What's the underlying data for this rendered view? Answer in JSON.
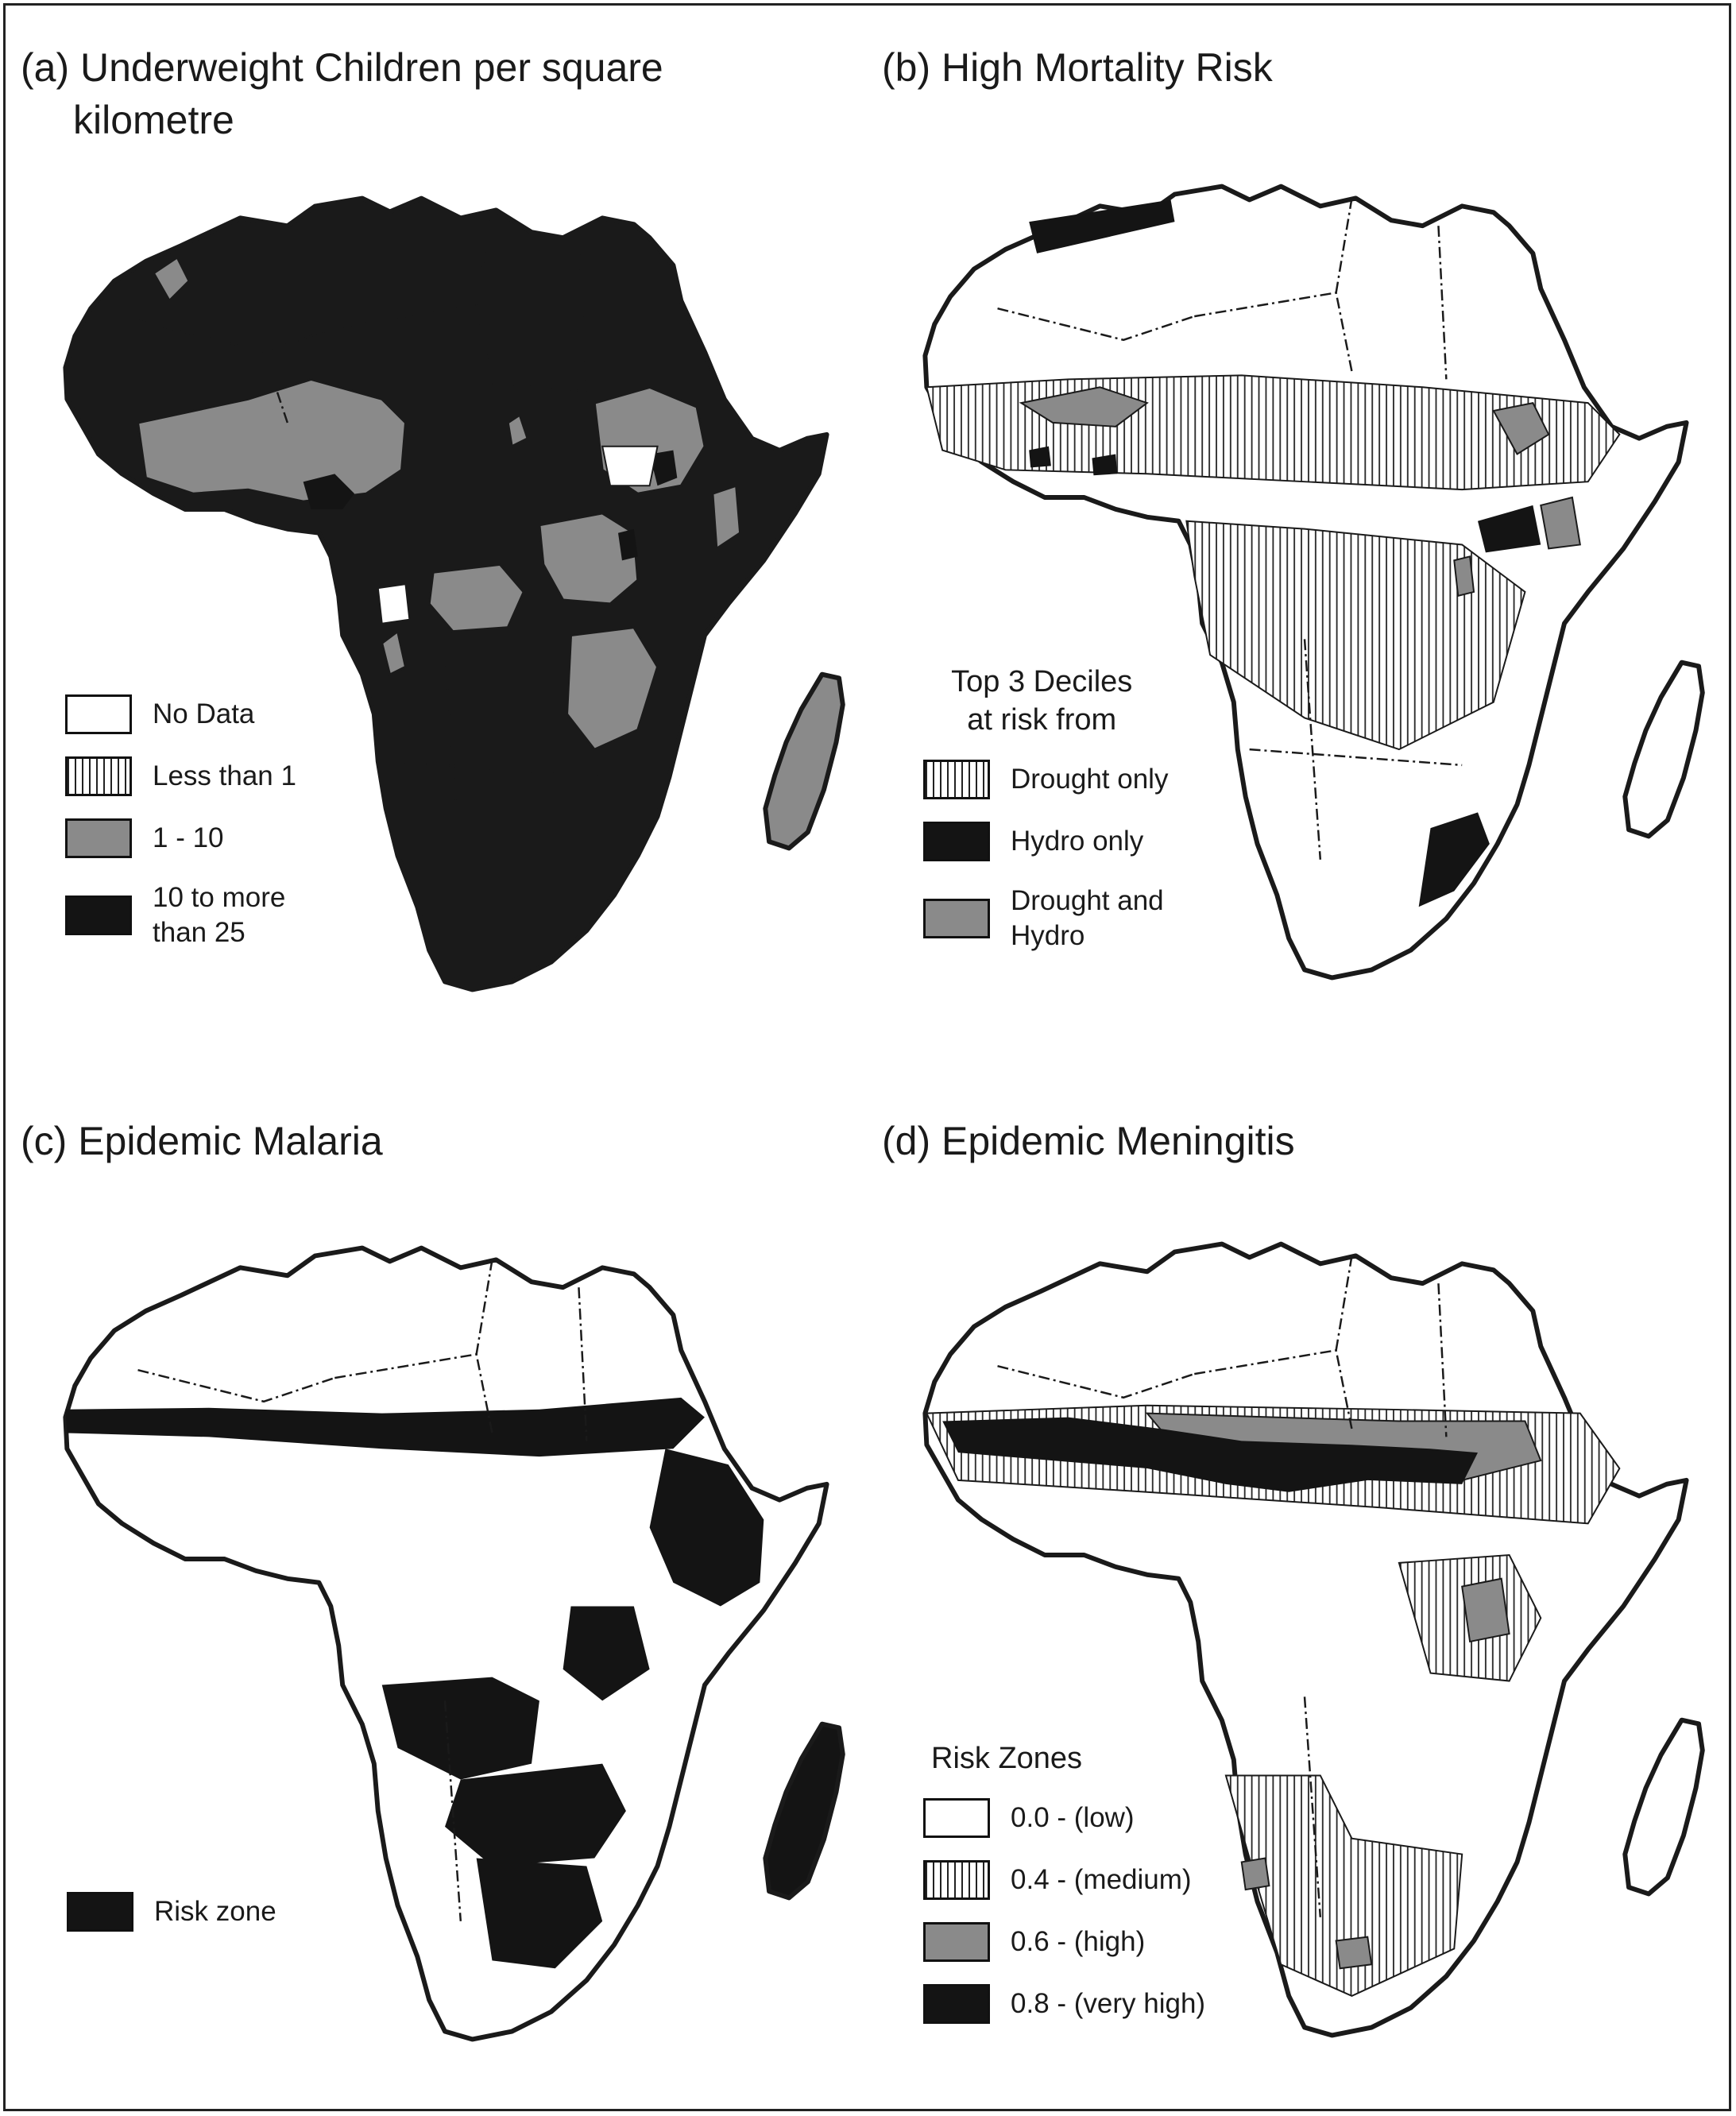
{
  "colors": {
    "outline": "#1a1a1a",
    "gray": "#8a8a8a",
    "black": "#141414",
    "hatch": "#222222"
  },
  "panels": {
    "a": {
      "title_line1": "(a) Underweight Children per square",
      "title_line2": "kilometre",
      "legend": [
        {
          "label": "No Data",
          "fill": "white"
        },
        {
          "label": "Less than 1",
          "fill": "hatch"
        },
        {
          "label": "1 - 10",
          "fill": "gray"
        },
        {
          "label_line1": "10 to more",
          "label_line2": "than 25",
          "fill": "black"
        }
      ]
    },
    "b": {
      "title": "(b) High Mortality Risk",
      "legend_title_line1": "Top 3 Deciles",
      "legend_title_line2": "at risk from",
      "legend": [
        {
          "label": "Drought only",
          "fill": "hatch"
        },
        {
          "label": "Hydro only",
          "fill": "black"
        },
        {
          "label_line1": "Drought and",
          "label_line2": "Hydro",
          "fill": "gray"
        }
      ]
    },
    "c": {
      "title": "(c) Epidemic Malaria",
      "legend": [
        {
          "label": "Risk zone",
          "fill": "black"
        }
      ]
    },
    "d": {
      "title": "(d) Epidemic Meningitis",
      "legend_title": "Risk Zones",
      "legend": [
        {
          "label": "0.0 - (low)",
          "fill": "white"
        },
        {
          "label": "0.4 - (medium)",
          "fill": "hatch"
        },
        {
          "label": "0.6 - (high)",
          "fill": "gray"
        },
        {
          "label": "0.8 - (very high)",
          "fill": "black"
        }
      ]
    }
  }
}
